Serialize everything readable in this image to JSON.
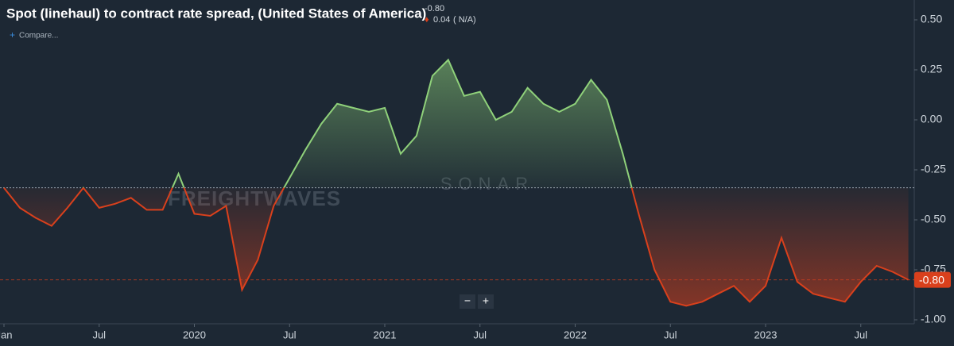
{
  "chart_data": {
    "type": "line",
    "title": "Spot (linehaul) to contract rate spread, (United States of America)",
    "header_value": "-0.80",
    "header_change": "0.04",
    "header_change_pct": "( N/A)",
    "compare": "Compare...",
    "watermark": [
      "FREIGHTWAVES",
      "SONAR"
    ],
    "last_label": "-0.80",
    "reference_line": -0.34,
    "x": [
      "2019-01",
      "2019-02",
      "2019-03",
      "2019-04",
      "2019-05",
      "2019-06",
      "2019-07",
      "2019-08",
      "2019-09",
      "2019-10",
      "2019-11",
      "2019-12",
      "2020-01",
      "2020-02",
      "2020-03",
      "2020-04",
      "2020-05",
      "2020-06",
      "2020-07",
      "2020-08",
      "2020-09",
      "2020-10",
      "2020-11",
      "2020-12",
      "2021-01",
      "2021-02",
      "2021-03",
      "2021-04",
      "2021-05",
      "2021-06",
      "2021-07",
      "2021-08",
      "2021-09",
      "2021-10",
      "2021-11",
      "2021-12",
      "2022-01",
      "2022-02",
      "2022-03",
      "2022-04",
      "2022-05",
      "2022-06",
      "2022-07",
      "2022-08",
      "2022-09",
      "2022-10",
      "2022-11",
      "2022-12",
      "2023-01",
      "2023-02",
      "2023-03",
      "2023-04",
      "2023-05",
      "2023-06",
      "2023-07",
      "2023-08",
      "2023-09",
      "2023-10"
    ],
    "series": [
      {
        "name": "Spot (linehaul) to contract rate spread",
        "color_above": "#8fd17a",
        "color_below": "#d9401c",
        "values": [
          -0.34,
          -0.44,
          -0.49,
          -0.53,
          -0.44,
          -0.34,
          -0.44,
          -0.42,
          -0.39,
          -0.45,
          -0.45,
          -0.27,
          -0.47,
          -0.48,
          -0.43,
          -0.85,
          -0.7,
          -0.43,
          -0.29,
          -0.15,
          -0.02,
          0.08,
          0.06,
          0.04,
          0.06,
          -0.17,
          -0.08,
          0.22,
          0.3,
          0.12,
          0.14,
          0.0,
          0.04,
          0.16,
          0.08,
          0.04,
          0.08,
          0.2,
          0.1,
          -0.17,
          -0.47,
          -0.75,
          -0.91,
          -0.93,
          -0.91,
          -0.87,
          -0.83,
          -0.91,
          -0.83,
          -0.59,
          -0.81,
          -0.87,
          -0.89,
          -0.91,
          -0.81,
          -0.73,
          -0.76,
          -0.8
        ]
      }
    ],
    "ylim": [
      -1.0,
      0.55
    ],
    "yticks": [
      {
        "value": 0.5,
        "label": "0.50"
      },
      {
        "value": 0.25,
        "label": "0.25"
      },
      {
        "value": 0,
        "label": "0.00"
      },
      {
        "value": -0.25,
        "label": "-0.25"
      },
      {
        "value": -0.5,
        "label": "-0.50"
      },
      {
        "value": -0.75,
        "label": "-0.75"
      },
      {
        "value": -1.0,
        "label": "-1.00"
      }
    ],
    "xticks": [
      {
        "value": "2019-01",
        "label": "Jan"
      },
      {
        "value": "2019-07",
        "label": "Jul"
      },
      {
        "value": "2020-01",
        "label": "2020"
      },
      {
        "value": "2020-07",
        "label": "Jul"
      },
      {
        "value": "2021-01",
        "label": "2021"
      },
      {
        "value": "2021-07",
        "label": "Jul"
      },
      {
        "value": "2022-01",
        "label": "2022"
      },
      {
        "value": "2022-07",
        "label": "Jul"
      },
      {
        "value": "2023-01",
        "label": "2023"
      },
      {
        "value": "2023-07",
        "label": "Jul"
      }
    ]
  }
}
